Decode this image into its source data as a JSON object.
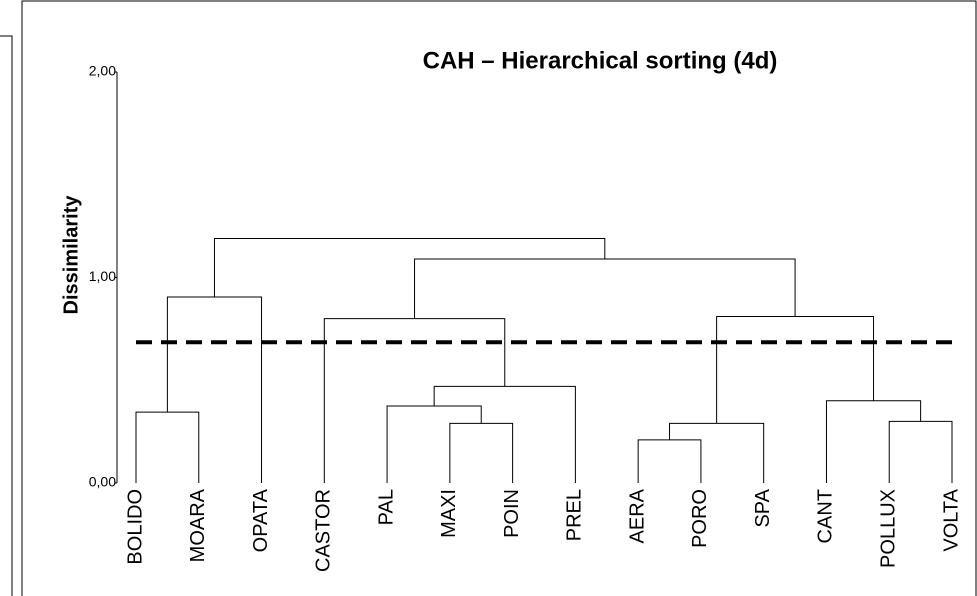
{
  "chart_data": {
    "type": "dendrogram",
    "title": "CAH – Hierarchical sorting (4d)",
    "y_label": "Dissimilarity",
    "leaves": [
      "BOLIDO",
      "MOARA",
      "OPATA",
      "CASTOR",
      "PAL",
      "MAXI",
      "POIN",
      "PREL",
      "AERA",
      "PORO",
      "SPA",
      "CANT",
      "POLLUX",
      "VOLTA"
    ],
    "merges": [
      {
        "left": 0,
        "right": 1,
        "height": 0.345
      },
      {
        "left": 14,
        "right": 2,
        "height": 0.905
      },
      {
        "left": 5,
        "right": 6,
        "height": 0.29
      },
      {
        "left": 4,
        "right": 16,
        "height": 0.375
      },
      {
        "left": 17,
        "right": 7,
        "height": 0.47
      },
      {
        "left": 3,
        "right": 18,
        "height": 0.8
      },
      {
        "left": 8,
        "right": 9,
        "height": 0.21
      },
      {
        "left": 20,
        "right": 10,
        "height": 0.29
      },
      {
        "left": 12,
        "right": 13,
        "height": 0.3
      },
      {
        "left": 11,
        "right": 22,
        "height": 0.4
      },
      {
        "left": 21,
        "right": 23,
        "height": 0.81
      },
      {
        "left": 19,
        "right": 24,
        "height": 1.09
      },
      {
        "left": 15,
        "right": 25,
        "height": 1.19
      }
    ],
    "threshold": 0.685,
    "ylim": [
      0,
      2
    ],
    "yticks": [
      {
        "value": 0,
        "label": "0,00"
      },
      {
        "value": 1,
        "label": "1,00"
      },
      {
        "value": 2,
        "label": "2,00"
      }
    ],
    "color": "#000000"
  }
}
